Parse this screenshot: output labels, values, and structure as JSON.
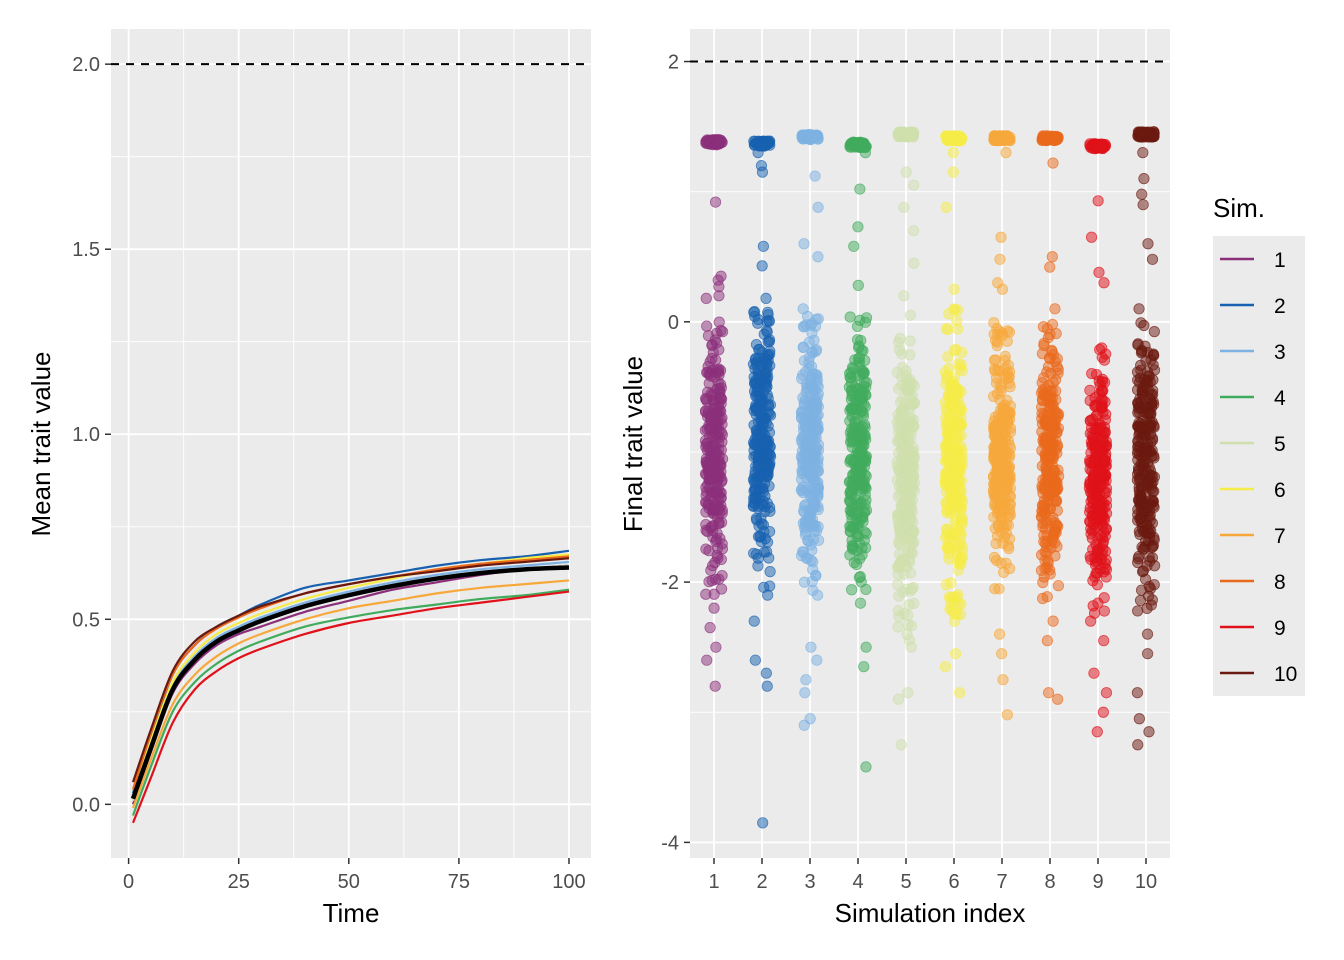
{
  "chart_data": [
    {
      "type": "line",
      "xlabel": "Time",
      "ylabel": "Mean trait value",
      "xlim": [
        -4,
        105
      ],
      "ylim": [
        -0.145,
        2.095
      ],
      "x_ticks": [
        0,
        25,
        50,
        75,
        100
      ],
      "x_tick_labels": [
        "0",
        "25",
        "50",
        "75",
        "100"
      ],
      "y_ticks": [
        0.0,
        0.5,
        1.0,
        1.5,
        2.0
      ],
      "y_tick_labels": [
        "0.0",
        "0.5",
        "1.0",
        "1.5",
        "2.0"
      ],
      "reference_line": {
        "y": 2.0,
        "style": "dashed"
      },
      "grid": true,
      "x": [
        1,
        5,
        10,
        15,
        20,
        25,
        30,
        40,
        50,
        60,
        70,
        80,
        90,
        100
      ],
      "series": [
        {
          "name": "1",
          "values": [
            0.0,
            0.14,
            0.3,
            0.38,
            0.43,
            0.46,
            0.48,
            0.52,
            0.55,
            0.58,
            0.6,
            0.62,
            0.635,
            0.645
          ]
        },
        {
          "name": "2",
          "values": [
            0.03,
            0.18,
            0.35,
            0.43,
            0.48,
            0.51,
            0.54,
            0.585,
            0.605,
            0.625,
            0.645,
            0.66,
            0.67,
            0.685
          ]
        },
        {
          "name": "3",
          "values": [
            0.02,
            0.16,
            0.32,
            0.4,
            0.45,
            0.48,
            0.505,
            0.545,
            0.575,
            0.6,
            0.62,
            0.635,
            0.645,
            0.655
          ]
        },
        {
          "name": "4",
          "values": [
            -0.03,
            0.1,
            0.25,
            0.33,
            0.38,
            0.415,
            0.44,
            0.48,
            0.505,
            0.525,
            0.54,
            0.555,
            0.565,
            0.58
          ]
        },
        {
          "name": "5",
          "values": [
            0.01,
            0.15,
            0.31,
            0.39,
            0.44,
            0.47,
            0.495,
            0.535,
            0.565,
            0.59,
            0.61,
            0.625,
            0.635,
            0.645
          ]
        },
        {
          "name": "6",
          "values": [
            0.02,
            0.17,
            0.33,
            0.41,
            0.46,
            0.49,
            0.515,
            0.555,
            0.585,
            0.61,
            0.635,
            0.65,
            0.665,
            0.675
          ]
        },
        {
          "name": "7",
          "values": [
            -0.01,
            0.12,
            0.27,
            0.35,
            0.4,
            0.435,
            0.46,
            0.5,
            0.53,
            0.55,
            0.57,
            0.585,
            0.595,
            0.605
          ]
        },
        {
          "name": "8",
          "values": [
            0.04,
            0.19,
            0.35,
            0.43,
            0.475,
            0.505,
            0.53,
            0.57,
            0.595,
            0.615,
            0.635,
            0.65,
            0.66,
            0.67
          ]
        },
        {
          "name": "9",
          "values": [
            -0.05,
            0.07,
            0.22,
            0.31,
            0.36,
            0.395,
            0.42,
            0.46,
            0.49,
            0.51,
            0.53,
            0.545,
            0.56,
            0.575
          ]
        },
        {
          "name": "10",
          "values": [
            0.06,
            0.2,
            0.36,
            0.44,
            0.48,
            0.51,
            0.535,
            0.57,
            0.595,
            0.615,
            0.63,
            0.645,
            0.655,
            0.665
          ]
        }
      ],
      "mean_series": {
        "values": [
          0.015,
          0.15,
          0.31,
          0.39,
          0.44,
          0.47,
          0.495,
          0.535,
          0.565,
          0.59,
          0.61,
          0.625,
          0.635,
          0.64
        ]
      }
    },
    {
      "type": "scatter",
      "xlabel": "Simulation index",
      "ylabel": "Final trait value",
      "xlim": [
        0.5,
        10.5
      ],
      "ylim": [
        -4.12,
        2.25
      ],
      "x_ticks": [
        1,
        2,
        3,
        4,
        5,
        6,
        7,
        8,
        9,
        10
      ],
      "x_tick_labels": [
        "1",
        "2",
        "3",
        "4",
        "5",
        "6",
        "7",
        "8",
        "9",
        "10"
      ],
      "y_ticks": [
        -4,
        -2,
        0,
        2
      ],
      "y_tick_labels": [
        "-4",
        "-2",
        "0",
        "2"
      ],
      "reference_line": {
        "y": 2.0,
        "style": "dashed"
      },
      "grid": true,
      "point_alpha": 0.5,
      "jitter_width": 0.18,
      "groups": [
        {
          "name": "1",
          "cluster_top": 1.38,
          "body_range": [
            -2.0,
            -0.1
          ],
          "outliers": [
            0.92,
            0.35,
            0.32,
            0.27,
            0.2,
            0.18,
            -2.2,
            -2.35,
            -2.5,
            -2.6,
            -2.8
          ]
        },
        {
          "name": "2",
          "cluster_top": 1.37,
          "body_range": [
            -1.9,
            0.0
          ],
          "outliers": [
            1.3,
            1.2,
            1.15,
            0.58,
            0.43,
            0.18,
            -2.1,
            -2.3,
            -2.6,
            -2.7,
            -2.8,
            -3.85
          ]
        },
        {
          "name": "3",
          "cluster_top": 1.42,
          "body_range": [
            -2.0,
            -0.05
          ],
          "outliers": [
            1.12,
            0.88,
            0.6,
            0.5,
            0.1,
            -2.5,
            -2.6,
            -2.75,
            -2.85,
            -3.05,
            -3.1
          ]
        },
        {
          "name": "4",
          "cluster_top": 1.36,
          "body_range": [
            -2.1,
            -0.05
          ],
          "outliers": [
            1.3,
            1.02,
            0.73,
            0.58,
            0.28,
            -2.5,
            -2.65,
            -3.42
          ]
        },
        {
          "name": "5",
          "cluster_top": 1.44,
          "body_range": [
            -2.3,
            -0.2
          ],
          "outliers": [
            1.15,
            1.05,
            0.88,
            0.7,
            0.45,
            0.2,
            0.05,
            -2.5,
            -2.85,
            -2.9,
            -3.25
          ]
        },
        {
          "name": "6",
          "cluster_top": 1.41,
          "body_range": [
            -2.1,
            0.0
          ],
          "outliers": [
            1.3,
            1.15,
            0.88,
            0.25,
            -2.3,
            -2.55,
            -2.65,
            -2.85
          ]
        },
        {
          "name": "7",
          "cluster_top": 1.41,
          "body_range": [
            -2.0,
            -0.1
          ],
          "outliers": [
            1.3,
            0.65,
            0.48,
            0.3,
            0.25,
            -2.4,
            -2.55,
            -2.75,
            -3.02
          ]
        },
        {
          "name": "8",
          "cluster_top": 1.41,
          "body_range": [
            -2.0,
            -0.1
          ],
          "outliers": [
            1.22,
            0.5,
            0.42,
            0.1,
            -2.3,
            -2.45,
            -2.85,
            -2.9
          ]
        },
        {
          "name": "9",
          "cluster_top": 1.35,
          "body_range": [
            -2.1,
            -0.3
          ],
          "outliers": [
            0.93,
            0.65,
            0.38,
            0.3,
            -2.3,
            -2.45,
            -2.7,
            -2.85,
            -3.0,
            -3.15
          ]
        },
        {
          "name": "10",
          "cluster_top": 1.44,
          "body_range": [
            -2.1,
            -0.05
          ],
          "outliers": [
            1.3,
            1.1,
            0.98,
            0.9,
            0.6,
            0.48,
            0.1,
            -2.4,
            -2.55,
            -2.85,
            -3.05,
            -3.15,
            -3.25
          ]
        }
      ]
    }
  ],
  "legend": {
    "title": "Sim.",
    "items": [
      {
        "label": "1",
        "color": "#8b2f7b"
      },
      {
        "label": "2",
        "color": "#1761b0"
      },
      {
        "label": "3",
        "color": "#7eb2e2"
      },
      {
        "label": "4",
        "color": "#41ab5d"
      },
      {
        "label": "5",
        "color": "#cfe0ad"
      },
      {
        "label": "6",
        "color": "#f6ec48"
      },
      {
        "label": "7",
        "color": "#f7a83b"
      },
      {
        "label": "8",
        "color": "#ea6a1c"
      },
      {
        "label": "9",
        "color": "#e0111a"
      },
      {
        "label": "10",
        "color": "#6b190f"
      }
    ]
  }
}
